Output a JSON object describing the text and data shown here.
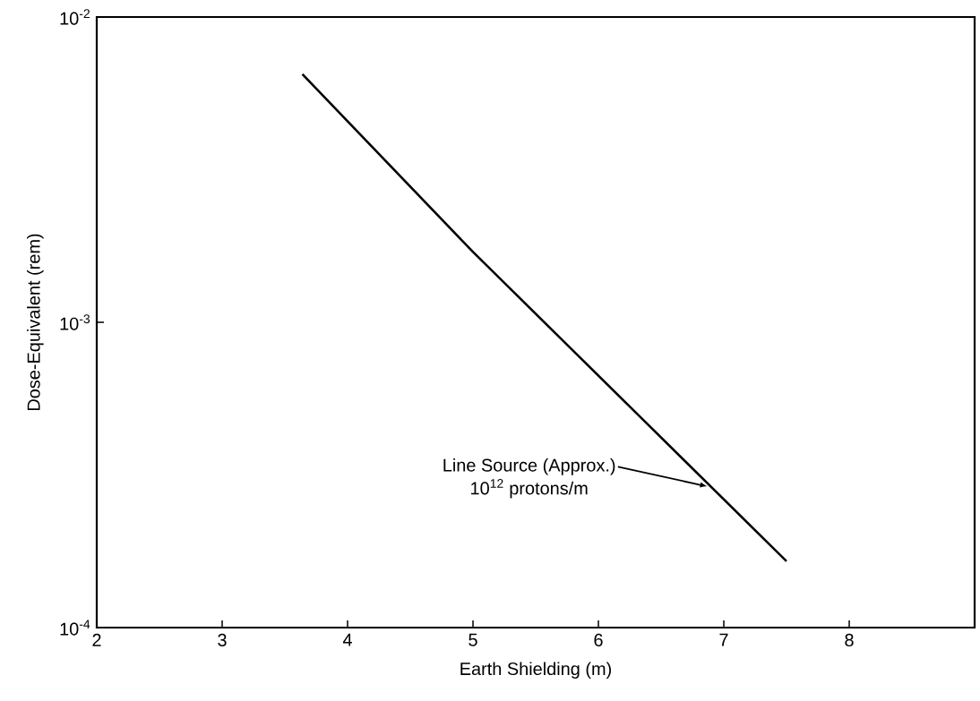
{
  "chart_data": {
    "type": "line",
    "xlabel": "Earth Shielding (m)",
    "ylabel": "Dose-Equivalent  (rem)",
    "x": [
      3.64,
      5,
      7.5
    ],
    "series": [
      {
        "color": "#000000",
        "values": [
          0.0065,
          0.0017,
          0.000165
        ]
      }
    ],
    "xlim": [
      2,
      9
    ],
    "xticks": [
      2,
      3,
      4,
      5,
      6,
      7,
      8
    ],
    "ylim": [
      0.0001,
      0.01
    ],
    "yticks": [
      {
        "value": 0.0001,
        "label": "10$^{-4}$"
      },
      {
        "value": 0.001,
        "label": "10$^{-3}$"
      },
      {
        "value": 0.01,
        "label": "10$^{-2}$"
      }
    ],
    "log": "y",
    "grid": false,
    "marker": "none",
    "line_style": "solid",
    "annotations": [
      {
        "text": "Line Source (Approx.)",
        "x": 6.87,
        "y": 0.00029
      },
      "10$^{12}$ protons/m"
    ]
  }
}
